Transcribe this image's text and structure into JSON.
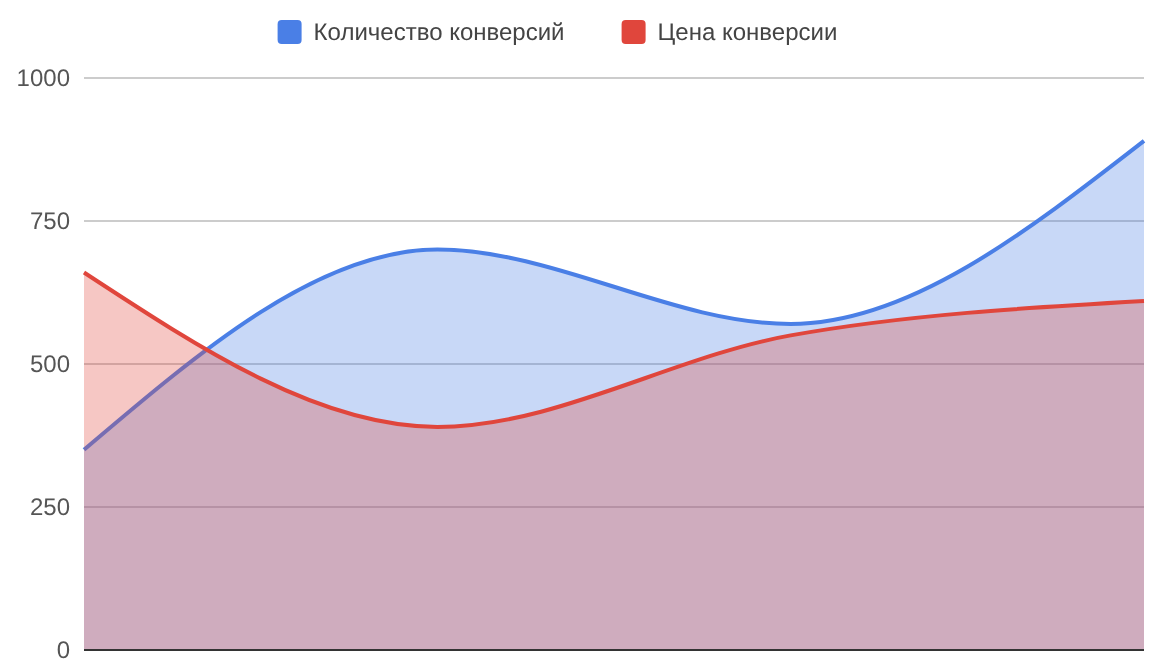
{
  "chart_data": {
    "type": "area",
    "categories": [
      null,
      null,
      null,
      null
    ],
    "series": [
      {
        "name": "Количество конверсий",
        "color": "#4a7fe6",
        "values": [
          350,
          700,
          570,
          890
        ]
      },
      {
        "name": "Цена конверсии",
        "color": "#e0463c",
        "values": [
          660,
          390,
          550,
          610
        ]
      }
    ],
    "ylim": [
      0,
      1000
    ],
    "yticks": [
      0,
      250,
      500,
      750,
      1000
    ],
    "grid": "y",
    "legend": "top"
  }
}
